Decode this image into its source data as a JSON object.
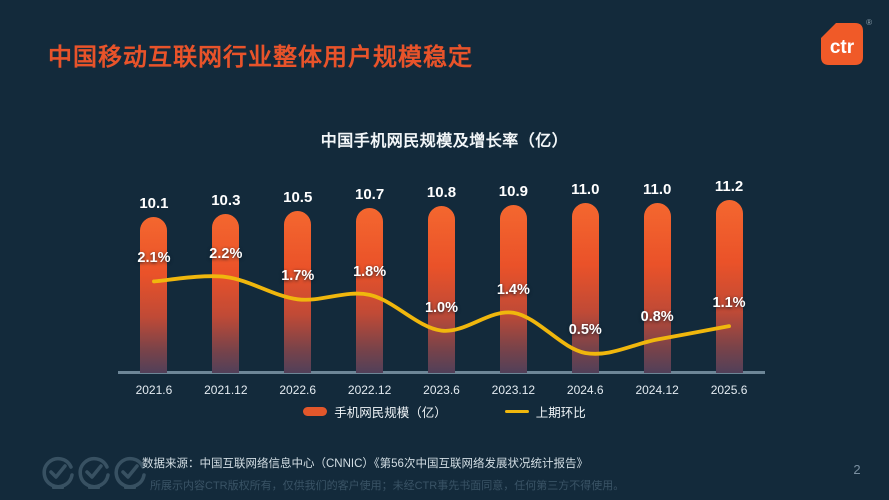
{
  "header": {
    "title": "中国移动互联网行业整体用户规模稳定",
    "logo_text": "ctr",
    "logo_registered_mark": "®",
    "brand_color": "#f05a28"
  },
  "chart_data": {
    "type": "bar",
    "title": "中国手机网民规模及增长率（亿）",
    "categories": [
      "2021.6",
      "2021.12",
      "2022.6",
      "2022.12",
      "2023.6",
      "2023.12",
      "2024.6",
      "2024.12",
      "2025.6"
    ],
    "series": [
      {
        "name": "手机网民规模（亿）",
        "type": "bar",
        "values": [
          10.1,
          10.3,
          10.5,
          10.7,
          10.8,
          10.9,
          11.0,
          11.0,
          11.2
        ],
        "labels": [
          "10.1",
          "10.3",
          "10.5",
          "10.7",
          "10.8",
          "10.9",
          "11.0",
          "11.0",
          "11.2"
        ],
        "color": "#e8532a"
      },
      {
        "name": "上期环比",
        "type": "line",
        "values": [
          2.1,
          2.2,
          1.7,
          1.8,
          1.0,
          1.4,
          0.5,
          0.8,
          1.1
        ],
        "labels": [
          "2.1%",
          "2.2%",
          "1.7%",
          "1.8%",
          "1.0%",
          "1.4%",
          "0.5%",
          "0.8%",
          "1.1%"
        ],
        "color": "#f0b70d"
      }
    ],
    "ylim_bar": [
      0,
      11.2
    ],
    "grid": false,
    "legend_position": "bottom"
  },
  "legend": {
    "bar_label": "手机网民规模（亿）",
    "line_label": "上期环比"
  },
  "footer": {
    "source": "数据来源：中国互联网络信息中心（CNNIC）《第56次中国互联网络发展状况统计报告》",
    "disclaimer": "所展示内容CTR版权所有，仅供我们的客户使用；未经CTR事先书面同意，任何第三方不得使用。",
    "page_number": "2"
  },
  "colors": {
    "background": "#132a3b",
    "title": "#e8532a",
    "bar_top": "#f4672f",
    "bar_bottom": "#514059",
    "line": "#f0b70d",
    "axis": "#7e97a8",
    "text": "#ffffff"
  }
}
